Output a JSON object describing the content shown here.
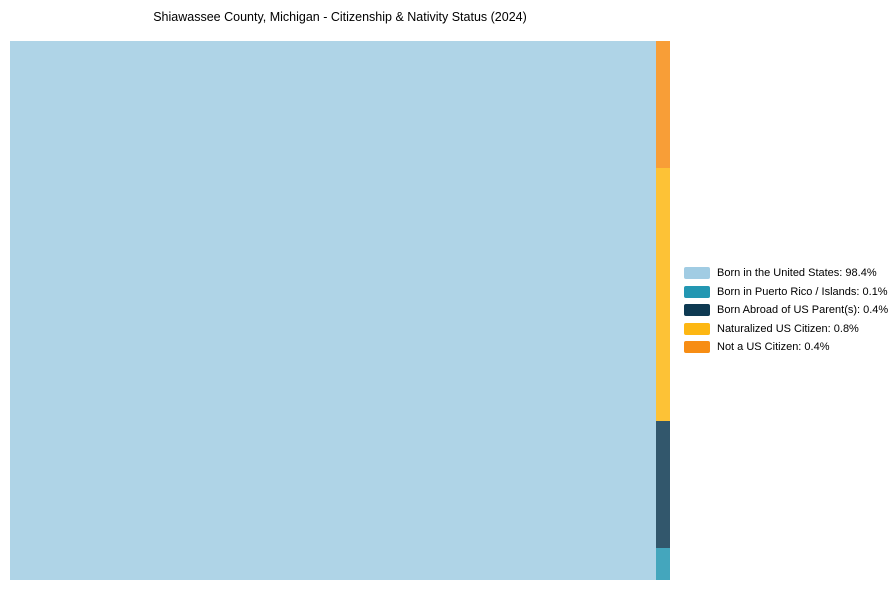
{
  "title": "Shiawassee County, Michigan - Citizenship & Nativity Status (2024)",
  "chart_data": {
    "type": "treemap",
    "title": "Shiawassee County, Michigan - Citizenship & Nativity Status (2024)",
    "unit": "%",
    "categories": [
      {
        "label": "Born in the United States",
        "value": 98.4,
        "color": "#A1CCE3",
        "legend_text": "Born in the United States: 98.4%"
      },
      {
        "label": "Born in Puerto Rico / Islands",
        "value": 0.1,
        "color": "#2397B2",
        "legend_text": "Born in Puerto Rico / Islands: 0.1%"
      },
      {
        "label": "Born Abroad of US Parent(s)",
        "value": 0.4,
        "color": "#0E3A52",
        "legend_text": "Born Abroad of US Parent(s): 0.4%"
      },
      {
        "label": "Naturalized US Citizen",
        "value": 0.8,
        "color": "#FDB713",
        "legend_text": "Naturalized US Citizen: 0.8%"
      },
      {
        "label": "Not a US Citizen",
        "value": 0.4,
        "color": "#F78D14",
        "legend_text": "Not a US Citizen: 0.4%"
      }
    ],
    "layout": {
      "main_category_index": 0,
      "strip_order_top_to_bottom": [
        4,
        3,
        2,
        1
      ],
      "legend_position": "right",
      "cell_opacity": 0.85,
      "grid": false,
      "axes": false
    }
  }
}
